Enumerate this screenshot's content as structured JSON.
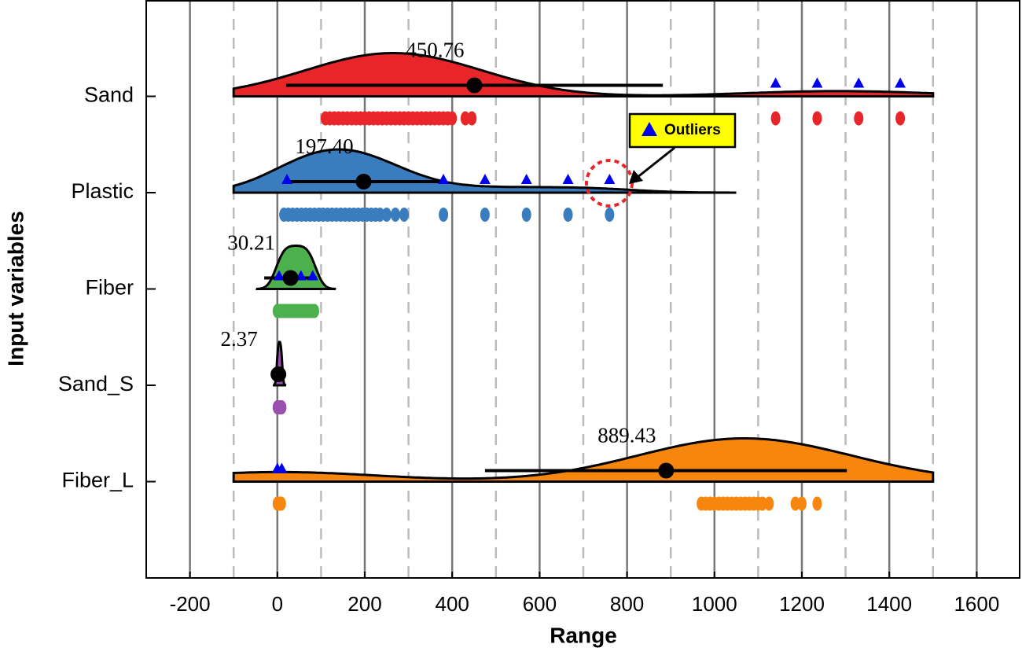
{
  "chart_data": {
    "type": "raincloud",
    "x_label": "Range",
    "y_label": "Input variables",
    "xlim": [
      -300,
      1700
    ],
    "xticks": [
      -200,
      0,
      200,
      400,
      600,
      800,
      1000,
      1200,
      1400,
      1600
    ],
    "minor_xticks": [
      -100,
      100,
      300,
      500,
      700,
      900,
      1100,
      1300,
      1500
    ],
    "grid": true,
    "annotation": "Outliers",
    "series": [
      {
        "name": "Sand",
        "color": "#e8262a",
        "mean": 450.76,
        "mean_label": "450.76",
        "whisker": [
          20,
          882
        ],
        "points": [
          110,
          120,
          130,
          140,
          150,
          160,
          170,
          180,
          190,
          200,
          210,
          220,
          230,
          240,
          250,
          260,
          270,
          280,
          290,
          300,
          310,
          320,
          330,
          340,
          350,
          360,
          370,
          380,
          390,
          400,
          430,
          445,
          1140,
          1235,
          1330,
          1425
        ],
        "outliers": [
          1140,
          1235,
          1330,
          1425
        ]
      },
      {
        "name": "Plastic",
        "color": "#3a7dbf",
        "mean": 197.4,
        "mean_label": "197.40",
        "whisker": [
          30,
          373
        ],
        "points": [
          15,
          25,
          35,
          45,
          55,
          65,
          75,
          85,
          95,
          105,
          115,
          125,
          135,
          145,
          155,
          165,
          175,
          185,
          195,
          205,
          215,
          225,
          235,
          250,
          270,
          290,
          380,
          475,
          570,
          665,
          760
        ],
        "outliers": [
          22,
          380,
          475,
          570,
          665,
          760
        ]
      },
      {
        "name": "Fiber",
        "color": "#4cb04c",
        "mean": 30.21,
        "mean_label": "30.21",
        "whisker": [
          -30,
          90
        ],
        "points": [
          0,
          5,
          10,
          15,
          20,
          25,
          30,
          35,
          40,
          45,
          50,
          55,
          60,
          65,
          70,
          75,
          80,
          85
        ],
        "outliers": [
          4,
          54,
          81
        ]
      },
      {
        "name": "Sand_S",
        "color": "#9b4fb0",
        "mean": 2.37,
        "mean_label": "2.37",
        "whisker": [
          0,
          8
        ],
        "points": [
          0,
          2,
          4,
          6,
          8,
          10
        ],
        "outliers": [
          8
        ]
      },
      {
        "name": "Fiber_L",
        "color": "#f7860f",
        "mean": 889.43,
        "mean_label": "889.43",
        "whisker": [
          475,
          1303
        ],
        "points": [
          0,
          3,
          6,
          9,
          970,
          980,
          990,
          1000,
          1010,
          1020,
          1030,
          1040,
          1050,
          1060,
          1070,
          1080,
          1090,
          1100,
          1110,
          1125,
          1185,
          1200,
          1235
        ],
        "outliers": [
          0,
          10
        ]
      }
    ]
  }
}
